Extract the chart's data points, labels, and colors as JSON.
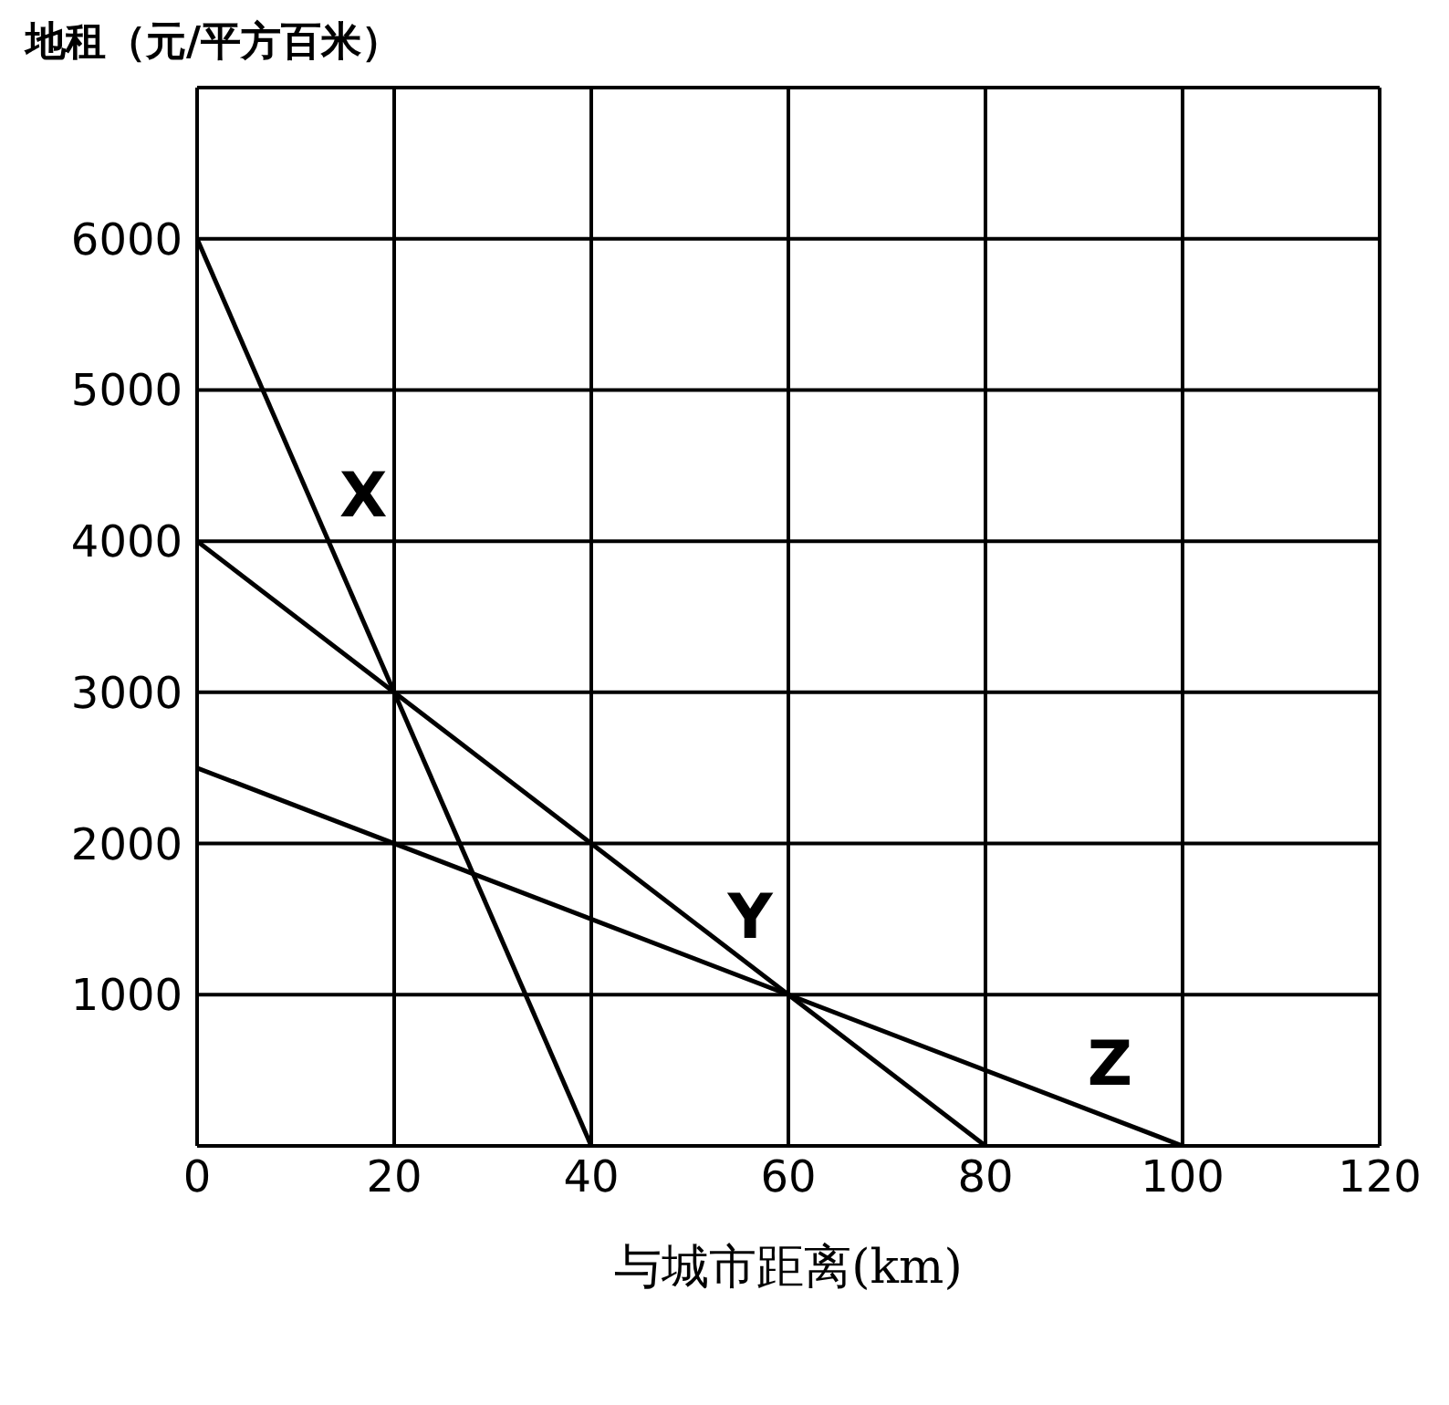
{
  "chart_data": {
    "type": "line",
    "ylabel": "地租（元/平方百米）",
    "xlabel": "与城市距离(km)",
    "series": [
      {
        "name": "X",
        "color": "#000000",
        "x": [
          0,
          40
        ],
        "values": [
          6000,
          0
        ]
      },
      {
        "name": "Y",
        "color": "#000000",
        "x": [
          0,
          80
        ],
        "values": [
          4000,
          0
        ]
      },
      {
        "name": "Z",
        "color": "#000000",
        "x": [
          0,
          100
        ],
        "values": [
          2500,
          0
        ]
      }
    ],
    "xlim": [
      0,
      120
    ],
    "xticks": [
      0,
      20,
      40,
      60,
      80,
      100,
      120
    ],
    "ylim": [
      0,
      7000
    ],
    "yticks": [
      {
        "value": 0,
        "label": null
      },
      1000,
      2000,
      3000,
      4000,
      5000,
      6000
    ],
    "grid": true,
    "legend": false,
    "marker": "none",
    "line_style": "solid"
  }
}
